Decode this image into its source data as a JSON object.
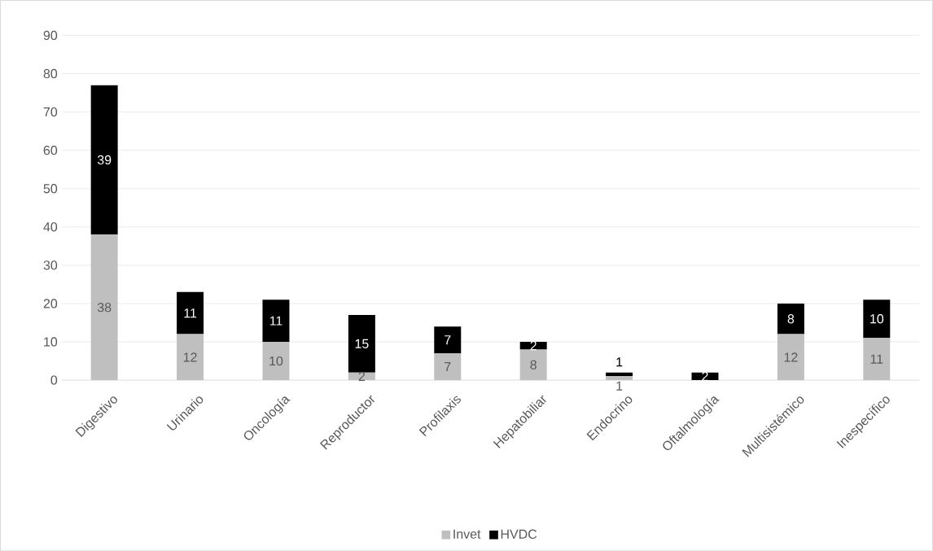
{
  "chart_data": {
    "type": "bar",
    "stacked": true,
    "categories": [
      "Digestivo",
      "Urinario",
      "Oncología",
      "Reproductor",
      "Profilaxis",
      "Hepatobiliar",
      "Endocrino",
      "Oftalmología",
      "Multisistémico",
      "Inespecífico"
    ],
    "series": [
      {
        "name": "Invet",
        "color": "#bfbfbf",
        "values": [
          38,
          12,
          10,
          2,
          7,
          8,
          1,
          0,
          12,
          11
        ],
        "value_labels": [
          "38",
          "12",
          "10",
          "2",
          "7",
          "8",
          "1",
          null,
          "12",
          "11"
        ]
      },
      {
        "name": "HVDC",
        "color": "#000000",
        "values": [
          39,
          11,
          11,
          15,
          7,
          2,
          1,
          2,
          8,
          10
        ],
        "value_labels": [
          "39",
          "11",
          "11",
          "15",
          "7",
          "2",
          "1",
          "2",
          "8",
          "10"
        ]
      }
    ],
    "ylim": [
      0,
      90
    ],
    "yticks": [
      0,
      10,
      20,
      30,
      40,
      50,
      60,
      70,
      80,
      90
    ],
    "grid": "y",
    "legend": "bottom"
  }
}
